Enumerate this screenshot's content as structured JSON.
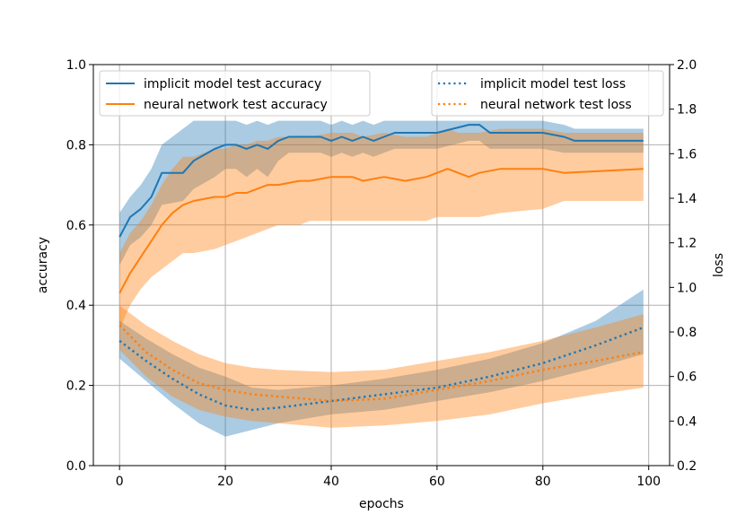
{
  "chart_data": {
    "type": "line",
    "xlabel": "epochs",
    "ylabel_left": "accuracy",
    "ylabel_right": "loss",
    "xlim": [
      -4.95,
      103.95
    ],
    "ylim_left": [
      0.0,
      1.0
    ],
    "ylim_right": [
      0.2,
      2.0
    ],
    "x_ticks": [
      0,
      20,
      40,
      60,
      80,
      100
    ],
    "x_tick_labels": [
      "0",
      "20",
      "40",
      "60",
      "80",
      "100"
    ],
    "y_left_ticks": [
      0.0,
      0.2,
      0.4,
      0.6,
      0.8,
      1.0
    ],
    "y_left_tick_labels": [
      "0.0",
      "0.2",
      "0.4",
      "0.6",
      "0.8",
      "1.0"
    ],
    "y_right_ticks": [
      0.2,
      0.4,
      0.6,
      0.8,
      1.0,
      1.2,
      1.4,
      1.6,
      1.8,
      2.0
    ],
    "y_right_tick_labels": [
      "0.2",
      "0.4",
      "0.6",
      "0.8",
      "1.0",
      "1.2",
      "1.4",
      "1.6",
      "1.8",
      "2.0"
    ],
    "grid": true,
    "legend_left": [
      "implicit model test accuracy",
      "neural network test accuracy"
    ],
    "legend_right": [
      "implicit model test loss",
      "neural network test loss"
    ],
    "colors": {
      "implicit": "#1f77b4",
      "nn": "#ff7f0e",
      "grid": "#b0b0b0",
      "legend_edge": "#cccccc"
    },
    "series": [
      {
        "name": "implicit model test accuracy",
        "axis": "left",
        "style": "solid",
        "color": "#1f77b4",
        "x": [
          0,
          2,
          4,
          6,
          8,
          12,
          14,
          18,
          20,
          22,
          24,
          26,
          28,
          30,
          32,
          36,
          38,
          40,
          42,
          44,
          46,
          48,
          50,
          52,
          54,
          60,
          66,
          68,
          70,
          80,
          84,
          86,
          99
        ],
        "y": [
          0.57,
          0.62,
          0.64,
          0.67,
          0.73,
          0.73,
          0.76,
          0.79,
          0.8,
          0.8,
          0.79,
          0.8,
          0.79,
          0.81,
          0.82,
          0.82,
          0.82,
          0.81,
          0.82,
          0.81,
          0.82,
          0.81,
          0.82,
          0.83,
          0.83,
          0.83,
          0.85,
          0.85,
          0.83,
          0.83,
          0.82,
          0.81,
          0.81
        ],
        "lower": [
          0.5,
          0.55,
          0.57,
          0.6,
          0.65,
          0.66,
          0.69,
          0.72,
          0.74,
          0.74,
          0.72,
          0.74,
          0.72,
          0.76,
          0.78,
          0.78,
          0.78,
          0.77,
          0.78,
          0.77,
          0.78,
          0.77,
          0.78,
          0.79,
          0.79,
          0.79,
          0.81,
          0.81,
          0.79,
          0.79,
          0.78,
          0.78,
          0.78
        ],
        "upper": [
          0.63,
          0.67,
          0.7,
          0.74,
          0.8,
          0.84,
          0.86,
          0.86,
          0.86,
          0.86,
          0.85,
          0.86,
          0.85,
          0.86,
          0.86,
          0.86,
          0.86,
          0.85,
          0.86,
          0.85,
          0.86,
          0.85,
          0.86,
          0.86,
          0.86,
          0.86,
          0.86,
          0.86,
          0.86,
          0.86,
          0.85,
          0.84,
          0.84
        ]
      },
      {
        "name": "neural network test accuracy",
        "axis": "left",
        "style": "solid",
        "color": "#ff7f0e",
        "x": [
          0,
          2,
          4,
          6,
          8,
          10,
          12,
          14,
          18,
          20,
          22,
          24,
          26,
          28,
          30,
          34,
          36,
          40,
          44,
          46,
          50,
          54,
          58,
          60,
          62,
          64,
          66,
          68,
          72,
          80,
          84,
          99
        ],
        "y": [
          0.43,
          0.48,
          0.52,
          0.56,
          0.6,
          0.63,
          0.65,
          0.66,
          0.67,
          0.67,
          0.68,
          0.68,
          0.69,
          0.7,
          0.7,
          0.71,
          0.71,
          0.72,
          0.72,
          0.71,
          0.72,
          0.71,
          0.72,
          0.73,
          0.74,
          0.73,
          0.72,
          0.73,
          0.74,
          0.74,
          0.73,
          0.74
        ],
        "lower": [
          0.34,
          0.4,
          0.44,
          0.47,
          0.49,
          0.51,
          0.53,
          0.53,
          0.54,
          0.55,
          0.56,
          0.57,
          0.58,
          0.59,
          0.6,
          0.6,
          0.61,
          0.61,
          0.61,
          0.61,
          0.61,
          0.61,
          0.61,
          0.62,
          0.62,
          0.62,
          0.62,
          0.62,
          0.63,
          0.64,
          0.66,
          0.66
        ],
        "upper": [
          0.53,
          0.58,
          0.61,
          0.65,
          0.7,
          0.74,
          0.77,
          0.77,
          0.79,
          0.79,
          0.8,
          0.8,
          0.81,
          0.81,
          0.82,
          0.82,
          0.82,
          0.83,
          0.83,
          0.82,
          0.83,
          0.82,
          0.82,
          0.83,
          0.84,
          0.83,
          0.83,
          0.83,
          0.84,
          0.84,
          0.83,
          0.83
        ]
      },
      {
        "name": "implicit model test loss",
        "axis": "right",
        "style": "dotted",
        "color": "#1f77b4",
        "x": [
          0,
          5,
          10,
          15,
          20,
          25,
          30,
          40,
          50,
          60,
          70,
          80,
          90,
          99
        ],
        "y": [
          0.76,
          0.67,
          0.59,
          0.52,
          0.47,
          0.45,
          0.46,
          0.49,
          0.52,
          0.55,
          0.6,
          0.66,
          0.74,
          0.82
        ],
        "lower": [
          0.68,
          0.58,
          0.48,
          0.39,
          0.33,
          0.36,
          0.39,
          0.43,
          0.45,
          0.49,
          0.53,
          0.58,
          0.64,
          0.7
        ],
        "upper": [
          0.85,
          0.77,
          0.7,
          0.64,
          0.6,
          0.55,
          0.54,
          0.56,
          0.59,
          0.63,
          0.68,
          0.75,
          0.85,
          0.99
        ]
      },
      {
        "name": "neural network test loss",
        "axis": "right",
        "style": "dotted",
        "color": "#ff7f0e",
        "x": [
          0,
          5,
          10,
          15,
          20,
          25,
          30,
          40,
          50,
          60,
          70,
          80,
          90,
          99
        ],
        "y": [
          0.83,
          0.71,
          0.63,
          0.57,
          0.54,
          0.52,
          0.51,
          0.49,
          0.5,
          0.54,
          0.58,
          0.63,
          0.67,
          0.71
        ],
        "lower": [
          0.72,
          0.6,
          0.51,
          0.45,
          0.42,
          0.4,
          0.39,
          0.37,
          0.38,
          0.4,
          0.43,
          0.48,
          0.52,
          0.55
        ],
        "upper": [
          0.92,
          0.83,
          0.76,
          0.7,
          0.66,
          0.64,
          0.63,
          0.62,
          0.63,
          0.67,
          0.71,
          0.76,
          0.82,
          0.88
        ]
      }
    ]
  }
}
